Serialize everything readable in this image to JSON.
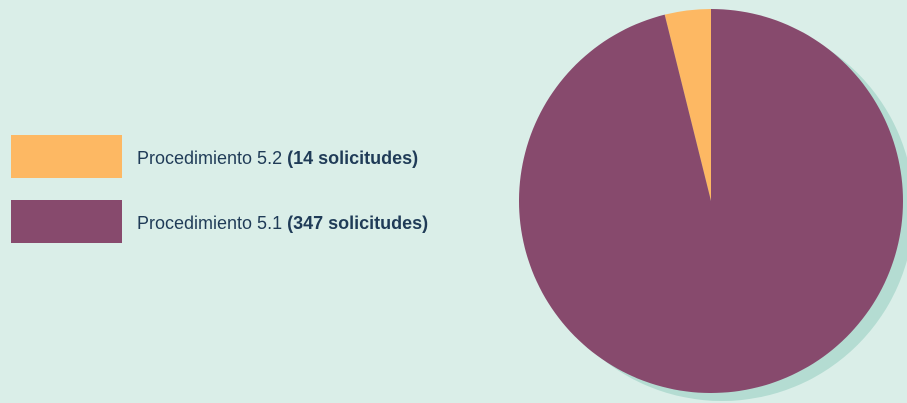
{
  "chart_data": {
    "type": "pie",
    "categories": [
      "Procedimiento 5.2",
      "Procedimiento 5.1"
    ],
    "values": [
      14,
      347
    ],
    "value_labels": [
      "(14 solicitudes)",
      "(347 solicitudes)"
    ],
    "colors": [
      "#fdb863",
      "#874a6d"
    ]
  }
}
